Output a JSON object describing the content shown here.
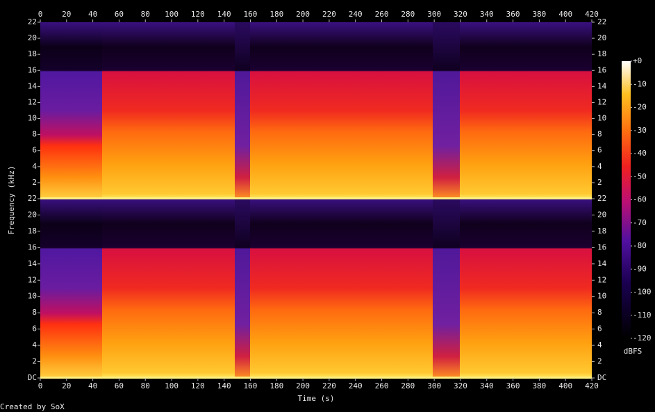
{
  "chart_data": {
    "type": "spectrogram",
    "xlabel": "Time (s)",
    "ylabel": "Frequency (kHz)",
    "xlim": [
      0,
      420
    ],
    "xticks": [
      0,
      20,
      40,
      60,
      80,
      100,
      120,
      140,
      160,
      180,
      200,
      220,
      240,
      260,
      280,
      300,
      320,
      340,
      360,
      380,
      400,
      420
    ],
    "ylim": [
      0,
      22
    ],
    "yticks": [
      {
        "value": 0,
        "label": "DC"
      },
      2,
      4,
      6,
      8,
      10,
      12,
      14,
      16,
      18,
      20,
      22
    ],
    "colorbar": {
      "label": "dBFS",
      "lim": [
        -120,
        0
      ],
      "ticks": [
        {
          "value": 0,
          "label": "+0"
        },
        -10,
        -20,
        -30,
        -40,
        -50,
        -60,
        -70,
        -80,
        -90,
        -100,
        -110,
        -120
      ]
    },
    "footer": "Created by SoX"
  }
}
